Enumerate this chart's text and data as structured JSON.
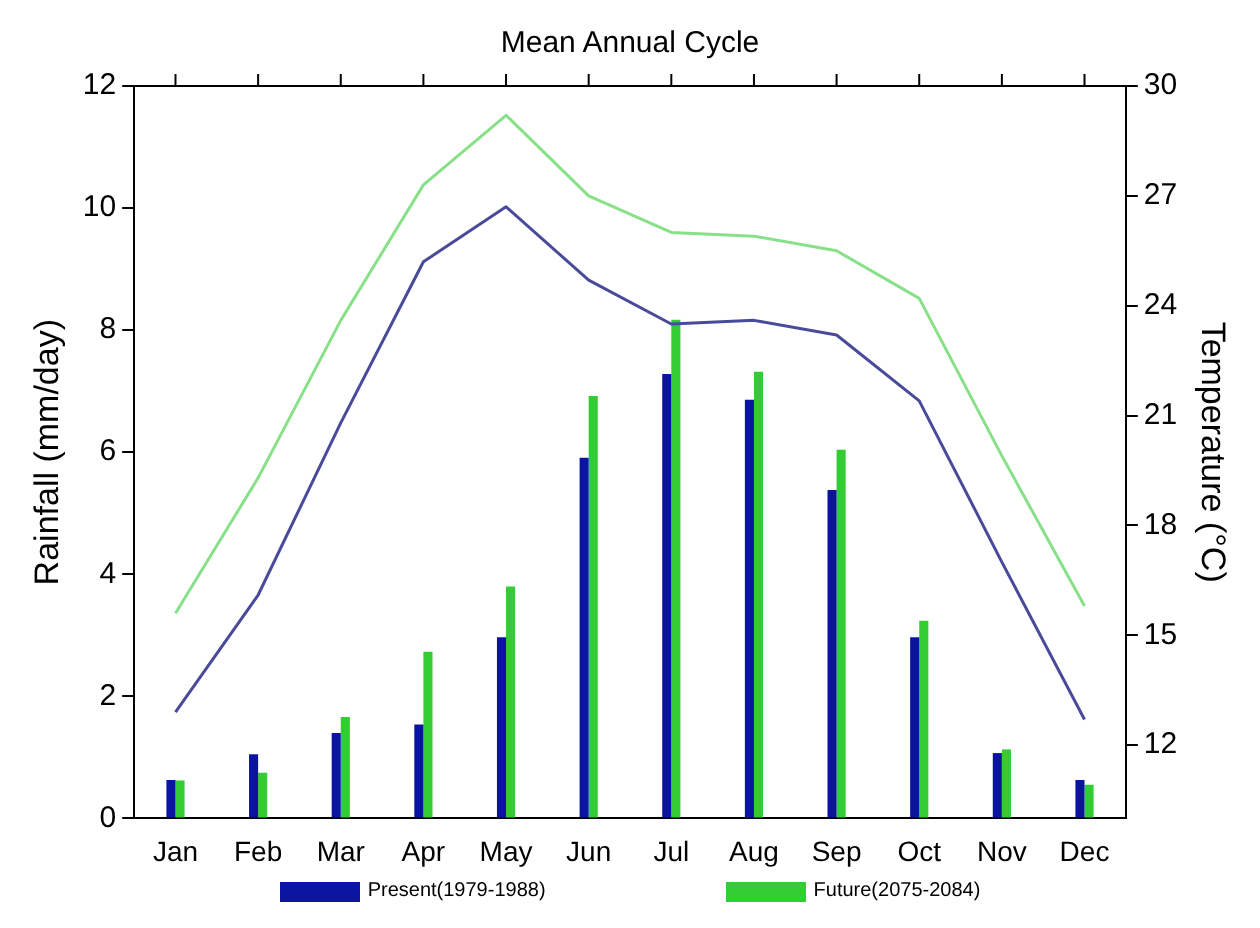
{
  "chart_data": {
    "type": "bar",
    "title": "Mean Annual Cycle",
    "ylabel": "Rainfall (mm/day)",
    "y2label": "Temperature (°C)",
    "categories": [
      "Jan",
      "Feb",
      "Mar",
      "Apr",
      "May",
      "Jun",
      "Jul",
      "Aug",
      "Sep",
      "Oct",
      "Nov",
      "Dec"
    ],
    "series": [
      {
        "name": "Present(1979-1988)",
        "color": "#0a14a0",
        "values": [
          0.63,
          1.05,
          1.4,
          1.54,
          2.97,
          5.91,
          7.28,
          6.86,
          5.38,
          2.97,
          1.07,
          0.63
        ]
      },
      {
        "name": "Future(2075-2084)",
        "color": "#33cc33",
        "values": [
          0.62,
          0.75,
          1.66,
          2.73,
          3.8,
          6.92,
          8.17,
          7.32,
          6.04,
          3.24,
          1.13,
          0.55
        ]
      },
      {
        "type": "line",
        "axis": "y2",
        "color": "#4a4a9a",
        "values": [
          12.9,
          16.1,
          20.8,
          25.2,
          26.7,
          24.7,
          23.5,
          23.6,
          23.2,
          21.4,
          17.0,
          12.7
        ]
      },
      {
        "type": "line",
        "axis": "y2",
        "color": "#88e088",
        "values": [
          15.6,
          19.3,
          23.6,
          27.3,
          29.2,
          27.0,
          26.0,
          25.9,
          25.5,
          24.2,
          19.9,
          15.8
        ]
      }
    ],
    "ylim": [
      0,
      12
    ],
    "yticks": [
      0,
      2,
      4,
      6,
      8,
      10,
      12
    ],
    "y2lim": [
      10,
      30
    ],
    "y2ticks": [
      12,
      15,
      18,
      21,
      24,
      27,
      30
    ],
    "grid": false,
    "legend": "bottom",
    "marker": "none",
    "line_style": "solid"
  }
}
